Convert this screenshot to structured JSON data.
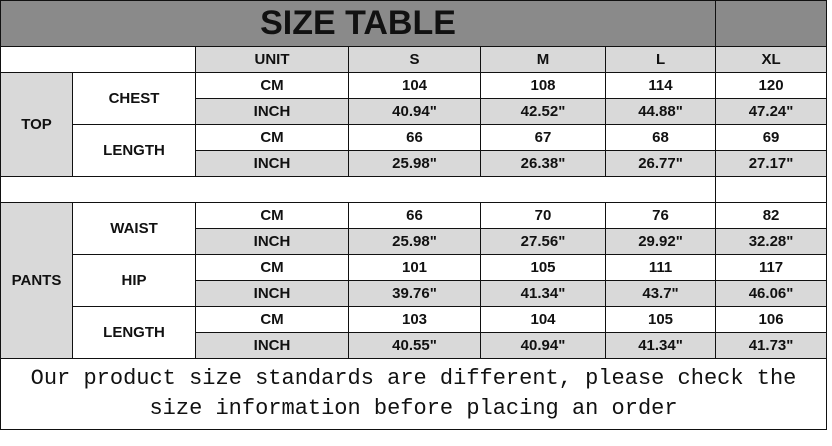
{
  "title": "SIZE TABLE",
  "header": {
    "unit": "UNIT",
    "sizes": [
      "S",
      "M",
      "L",
      "XL"
    ]
  },
  "units": {
    "cm": "CM",
    "inch": "INCH"
  },
  "top": {
    "label": "TOP",
    "chest": {
      "label": "CHEST",
      "cm": [
        "104",
        "108",
        "114",
        "120"
      ],
      "inch": [
        "40.94\"",
        "42.52\"",
        "44.88\"",
        "47.24\""
      ]
    },
    "length": {
      "label": "LENGTH",
      "cm": [
        "66",
        "67",
        "68",
        "69"
      ],
      "inch": [
        "25.98\"",
        "26.38\"",
        "26.77\"",
        "27.17\""
      ]
    }
  },
  "pants": {
    "label": "PANTS",
    "waist": {
      "label": "WAIST",
      "cm": [
        "66",
        "70",
        "76",
        "82"
      ],
      "inch": [
        "25.98\"",
        "27.56\"",
        "29.92\"",
        "32.28\""
      ]
    },
    "hip": {
      "label": "HIP",
      "cm": [
        "101",
        "105",
        "111",
        "117"
      ],
      "inch": [
        "39.76\"",
        "41.34\"",
        "43.7\"",
        "46.06\""
      ]
    },
    "length": {
      "label": "LENGTH",
      "cm": [
        "103",
        "104",
        "105",
        "106"
      ],
      "inch": [
        "40.55\"",
        "40.94\"",
        "41.34\"",
        "41.73\""
      ]
    }
  },
  "footer": "Our product size standards are different, please check the size information before placing an order"
}
